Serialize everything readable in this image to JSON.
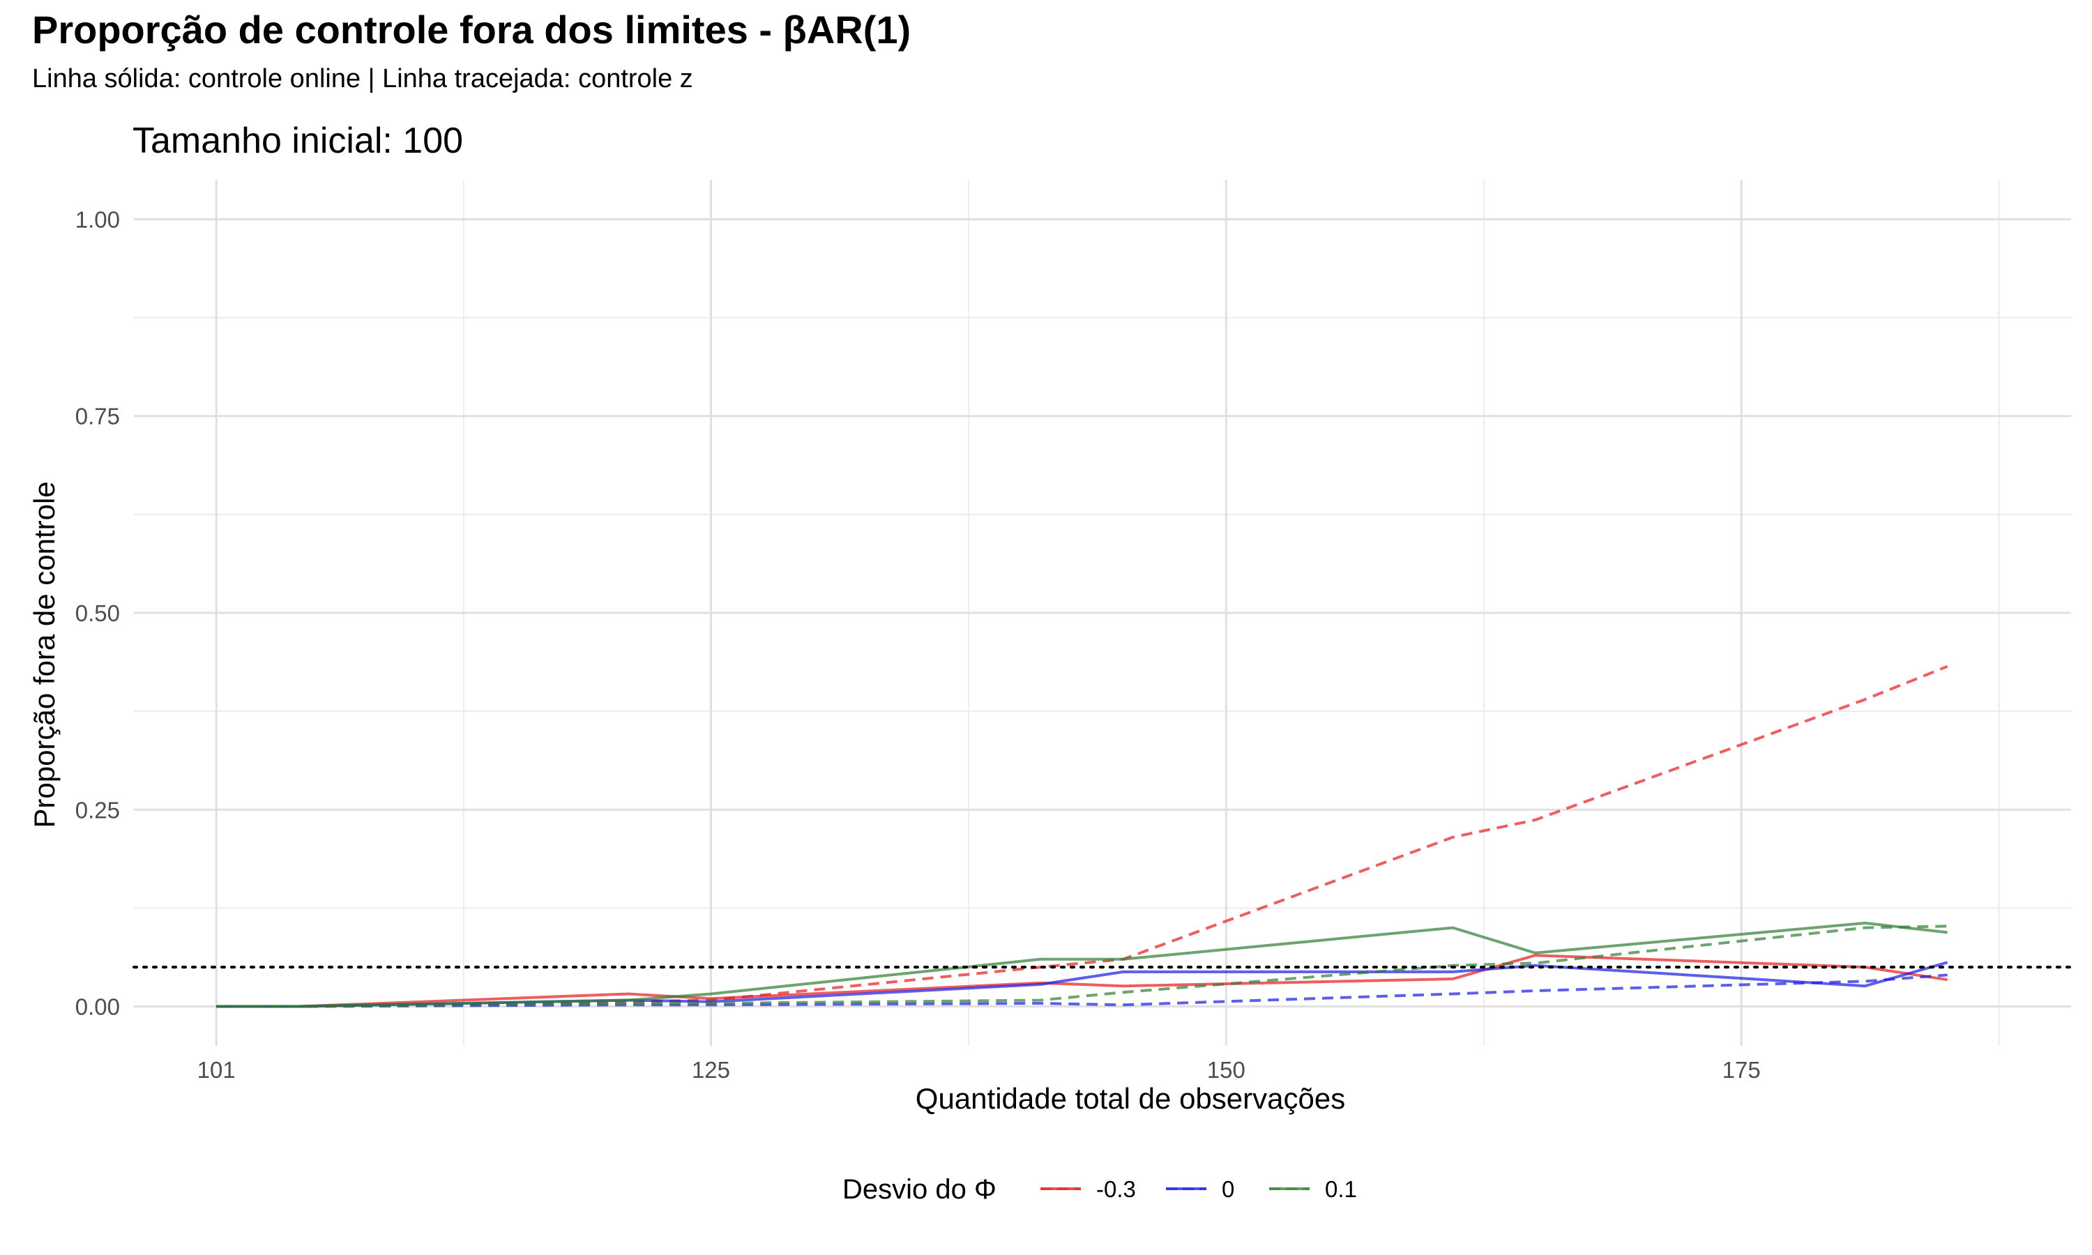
{
  "chart_data": {
    "type": "line",
    "title": "Proporção de controle fora dos limites - βAR(1)",
    "subtitle": "Linha sólida: controle online | Linha tracejada: controle z",
    "facet_label": "Tamanho inicial: 100",
    "xlabel": "Quantidade total de observações",
    "ylabel": "Proporção fora de controle",
    "xlim": [
      97,
      191
    ],
    "ylim": [
      -0.05,
      1.05
    ],
    "x_ticks": [
      101,
      125,
      150,
      175
    ],
    "y_ticks": [
      0.0,
      0.25,
      0.5,
      0.75,
      1.0
    ],
    "y_tick_labels": [
      "0.00",
      "0.25",
      "0.50",
      "0.75",
      "1.00"
    ],
    "x_minor_grid": [
      113,
      137.5,
      162.5,
      187.5
    ],
    "reference_line": {
      "y": 0.05,
      "style": "dotted",
      "color": "#000000"
    },
    "grid": true,
    "legend": {
      "title": "Desvio do Φ",
      "position": "bottom",
      "entries": [
        {
          "label": "-0.3",
          "color": "#E41A1C"
        },
        {
          "label": "0",
          "color": "#1A1AE6"
        },
        {
          "label": "0.1",
          "color": "#2E7D32"
        }
      ]
    },
    "series": [
      {
        "group": "-0.3",
        "method": "online",
        "dash": "solid",
        "color": "#E41A1C",
        "x": [
          101,
          105,
          121,
          125,
          141,
          145,
          161,
          165,
          181,
          185
        ],
        "y": [
          0.0,
          0.0,
          0.016,
          0.01,
          0.03,
          0.026,
          0.035,
          0.065,
          0.05,
          0.034
        ]
      },
      {
        "group": "-0.3",
        "method": "z",
        "dash": "dashed",
        "color": "#E41A1C",
        "x": [
          101,
          105,
          121,
          125,
          141,
          145,
          161,
          165,
          181,
          185
        ],
        "y": [
          0.0,
          0.0,
          0.006,
          0.008,
          0.05,
          0.06,
          0.215,
          0.237,
          0.39,
          0.432
        ]
      },
      {
        "group": "0",
        "method": "online",
        "dash": "solid",
        "color": "#1A1AE6",
        "x": [
          101,
          105,
          121,
          125,
          141,
          145,
          161,
          165,
          181,
          185
        ],
        "y": [
          0.0,
          0.0,
          0.008,
          0.006,
          0.028,
          0.044,
          0.044,
          0.052,
          0.026,
          0.056
        ]
      },
      {
        "group": "0",
        "method": "z",
        "dash": "dashed",
        "color": "#1A1AE6",
        "x": [
          101,
          105,
          121,
          125,
          141,
          145,
          161,
          165,
          181,
          185
        ],
        "y": [
          0.0,
          0.0,
          0.002,
          0.002,
          0.004,
          0.002,
          0.016,
          0.02,
          0.032,
          0.04
        ]
      },
      {
        "group": "0.1",
        "method": "online",
        "dash": "solid",
        "color": "#2E7D32",
        "x": [
          101,
          105,
          121,
          125,
          141,
          145,
          161,
          165,
          181,
          185
        ],
        "y": [
          0.0,
          0.0,
          0.008,
          0.016,
          0.06,
          0.06,
          0.1,
          0.068,
          0.106,
          0.094
        ]
      },
      {
        "group": "0.1",
        "method": "z",
        "dash": "dashed",
        "color": "#2E7D32",
        "x": [
          101,
          105,
          121,
          125,
          141,
          145,
          161,
          165,
          181,
          185
        ],
        "y": [
          0.0,
          0.0,
          0.004,
          0.004,
          0.008,
          0.018,
          0.052,
          0.055,
          0.1,
          0.102
        ]
      }
    ]
  }
}
